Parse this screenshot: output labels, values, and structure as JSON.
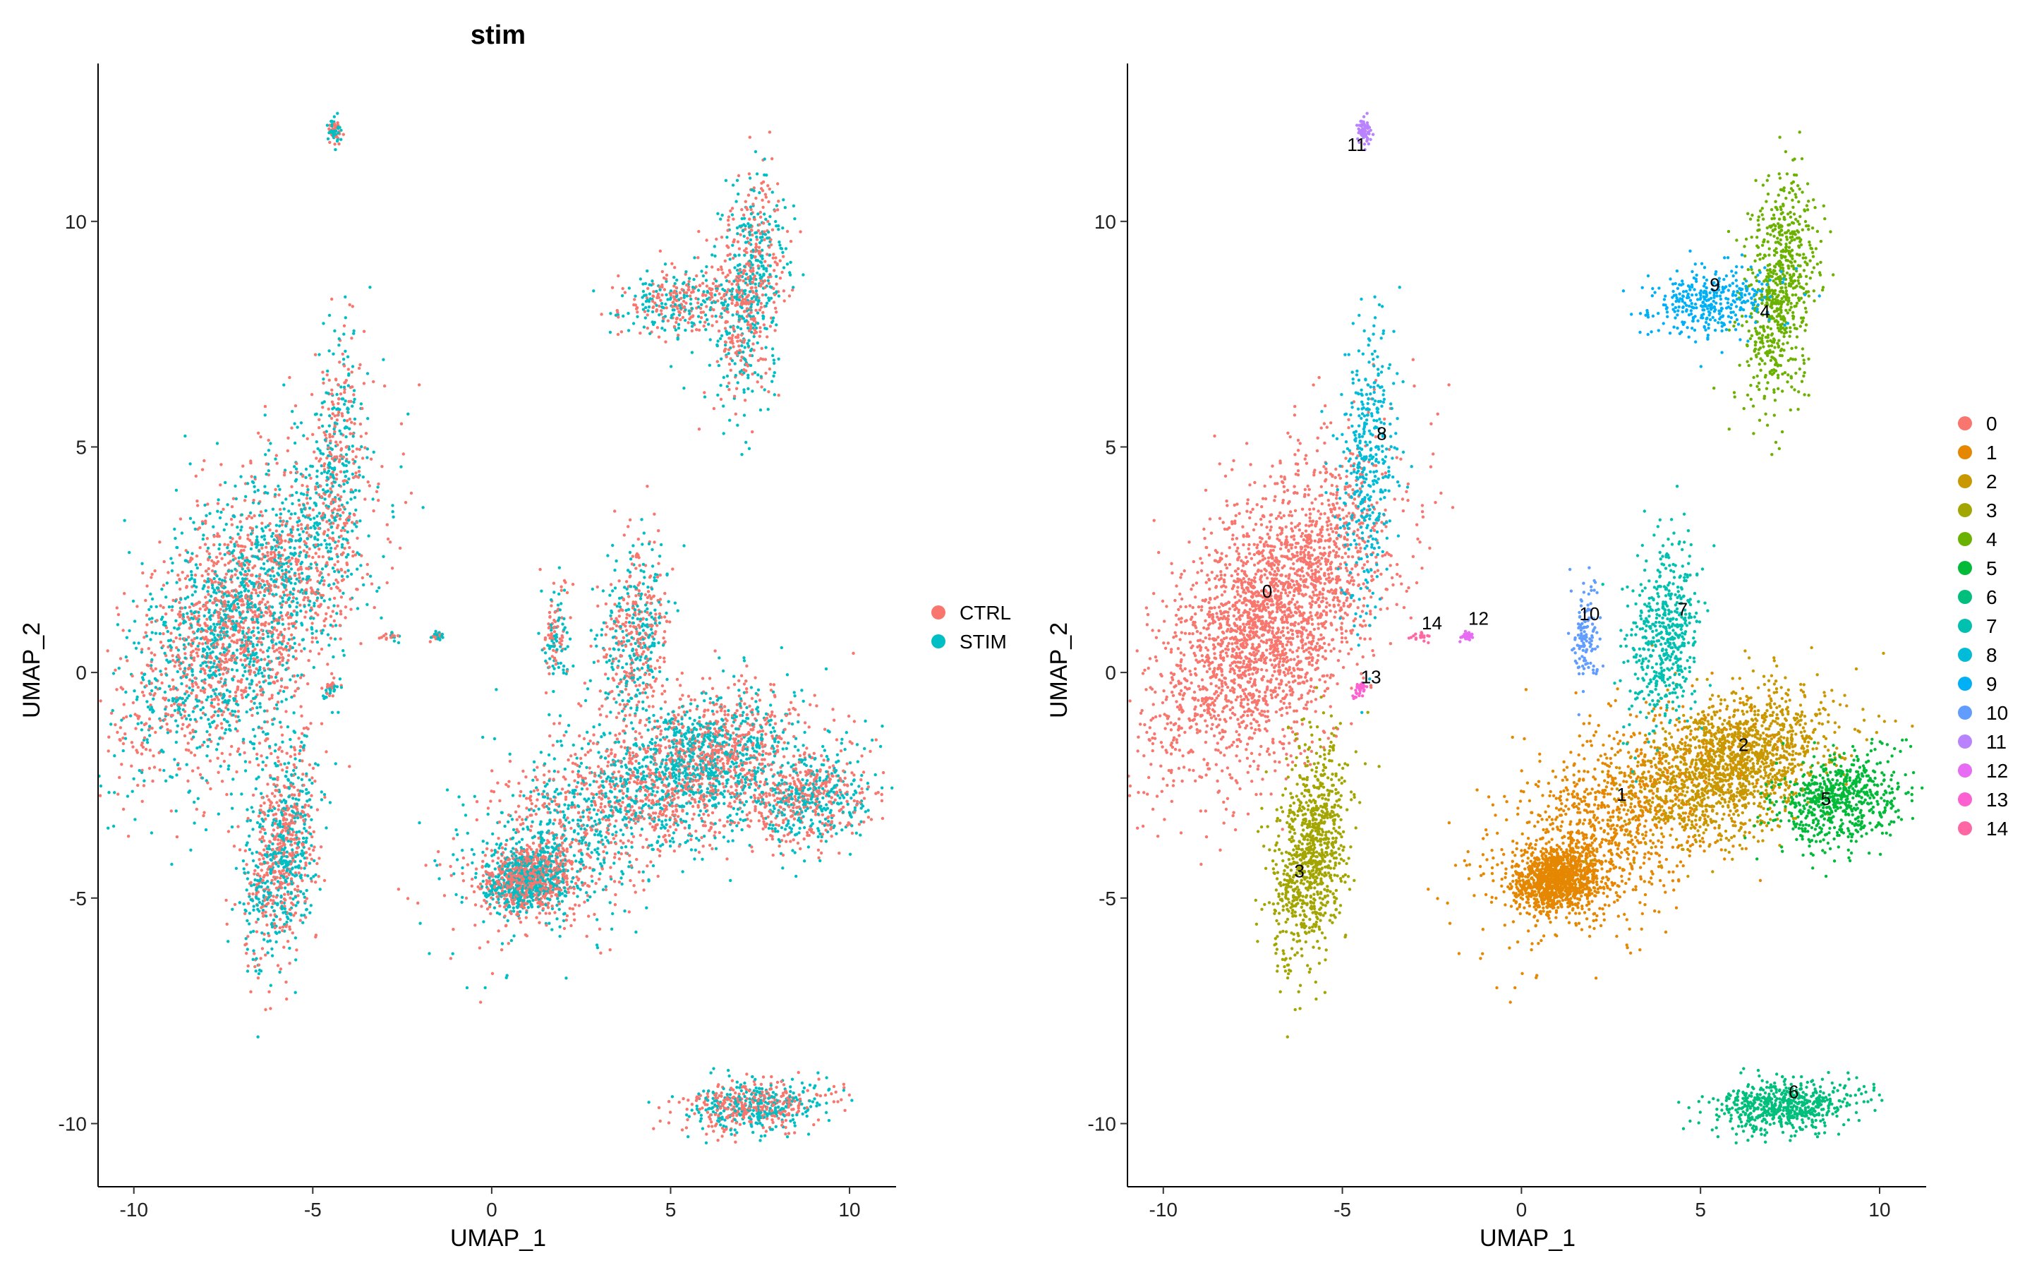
{
  "chart_data": [
    {
      "type": "scatter",
      "title": "stim",
      "xlabel": "UMAP_1",
      "ylabel": "UMAP_2",
      "xlim": [
        -11,
        11.3
      ],
      "ylim": [
        -11.4,
        13.5
      ],
      "xticks": [
        -10,
        -5,
        0,
        5,
        10
      ],
      "yticks": [
        -10,
        -5,
        0,
        5,
        10
      ],
      "xtick_labels": [
        "-10",
        "-5",
        "0",
        "5",
        "10"
      ],
      "ytick_labels": [
        "-10",
        "-5",
        "0",
        "5",
        "10"
      ],
      "legend": {
        "placement": "right",
        "entries": [
          {
            "name": "CTRL",
            "color": "#F8766D"
          },
          {
            "name": "STIM",
            "color": "#00BFC4"
          }
        ]
      },
      "grid": false
    },
    {
      "type": "scatter",
      "title": "",
      "xlabel": "UMAP_1",
      "ylabel": "UMAP_2",
      "xlim": [
        -11,
        11.3
      ],
      "ylim": [
        -11.4,
        13.5
      ],
      "xticks": [
        -10,
        -5,
        0,
        5,
        10
      ],
      "yticks": [
        -10,
        -5,
        0,
        5,
        10
      ],
      "xtick_labels": [
        "-10",
        "-5",
        "0",
        "5",
        "10"
      ],
      "ytick_labels": [
        "-10",
        "-5",
        "0",
        "5",
        "10"
      ],
      "legend": {
        "placement": "right",
        "entries": [
          {
            "name": "0",
            "color": "#F8766D"
          },
          {
            "name": "1",
            "color": "#E58700"
          },
          {
            "name": "2",
            "color": "#C99800"
          },
          {
            "name": "3",
            "color": "#A3A500"
          },
          {
            "name": "4",
            "color": "#6BB100"
          },
          {
            "name": "5",
            "color": "#00BA38"
          },
          {
            "name": "6",
            "color": "#00BF7D"
          },
          {
            "name": "7",
            "color": "#00C0AF"
          },
          {
            "name": "8",
            "color": "#00BCD8"
          },
          {
            "name": "9",
            "color": "#00B0F6"
          },
          {
            "name": "10",
            "color": "#619CFF"
          },
          {
            "name": "11",
            "color": "#B983FF"
          },
          {
            "name": "12",
            "color": "#E76BF3"
          },
          {
            "name": "13",
            "color": "#FD61D1"
          },
          {
            "name": "14",
            "color": "#FF67A4"
          }
        ]
      },
      "cluster_labels": [
        {
          "text": "0",
          "x": -7.1,
          "y": 1.8
        },
        {
          "text": "1",
          "x": 2.8,
          "y": -2.7
        },
        {
          "text": "2",
          "x": 6.2,
          "y": -1.6
        },
        {
          "text": "3",
          "x": -6.2,
          "y": -4.4
        },
        {
          "text": "4",
          "x": 6.8,
          "y": 8.0
        },
        {
          "text": "5",
          "x": 8.5,
          "y": -2.8
        },
        {
          "text": "6",
          "x": 7.6,
          "y": -9.3
        },
        {
          "text": "7",
          "x": 4.5,
          "y": 1.4
        },
        {
          "text": "8",
          "x": -3.9,
          "y": 5.3
        },
        {
          "text": "9",
          "x": 5.4,
          "y": 8.6
        },
        {
          "text": "10",
          "x": 1.9,
          "y": 1.3
        },
        {
          "text": "11",
          "x": -4.6,
          "y": 11.7
        },
        {
          "text": "12",
          "x": -1.2,
          "y": 1.2
        },
        {
          "text": "13",
          "x": -4.2,
          "y": -0.1
        },
        {
          "text": "14",
          "x": -2.5,
          "y": 1.1
        }
      ],
      "clusters": [
        {
          "id": "0",
          "blobs": [
            [
              -7.0,
              1.2,
              1.6,
              1.7,
              0.55
            ]
          ]
        },
        {
          "id": "1",
          "blobs": [
            [
              2.7,
              -3.2,
              1.7,
              1.2,
              0.45
            ],
            [
              1.0,
              -4.6,
              0.6,
              0.35,
              0.15
            ]
          ]
        },
        {
          "id": "2",
          "blobs": [
            [
              6.0,
              -2.0,
              1.3,
              0.8,
              0.4
            ]
          ]
        },
        {
          "id": "3",
          "blobs": [
            [
              -5.9,
              -4.0,
              0.5,
              1.2,
              0.3
            ]
          ]
        },
        {
          "id": "4",
          "blobs": [
            [
              7.2,
              8.5,
              0.5,
              1.2,
              0.3
            ]
          ]
        },
        {
          "id": "5",
          "blobs": [
            [
              8.8,
              -2.8,
              0.9,
              0.5,
              0.2
            ]
          ]
        },
        {
          "id": "6",
          "blobs": [
            [
              7.3,
              -9.6,
              1.0,
              0.3,
              0.2
            ]
          ]
        },
        {
          "id": "7",
          "blobs": [
            [
              4.0,
              0.8,
              0.5,
              1.0,
              0.25
            ]
          ]
        },
        {
          "id": "8",
          "blobs": [
            [
              -4.3,
              4.6,
              0.4,
              1.6,
              0.2
            ]
          ]
        },
        {
          "id": "9",
          "blobs": [
            [
              5.3,
              8.2,
              0.9,
              0.4,
              0.2
            ]
          ]
        },
        {
          "id": "10",
          "blobs": [
            [
              1.8,
              0.9,
              0.2,
              0.6,
              0.1
            ]
          ]
        },
        {
          "id": "11",
          "blobs": [
            [
              -4.4,
              12.0,
              0.1,
              0.15,
              0.05
            ]
          ]
        },
        {
          "id": "12",
          "blobs": [
            [
              -1.5,
              0.8,
              0.1,
              0.05,
              0.03
            ]
          ]
        },
        {
          "id": "13",
          "blobs": [
            [
              -4.5,
              -0.4,
              0.1,
              0.1,
              0.03
            ]
          ]
        },
        {
          "id": "14",
          "blobs": [
            [
              -2.8,
              0.8,
              0.12,
              0.05,
              0.02
            ]
          ]
        }
      ]
    }
  ]
}
